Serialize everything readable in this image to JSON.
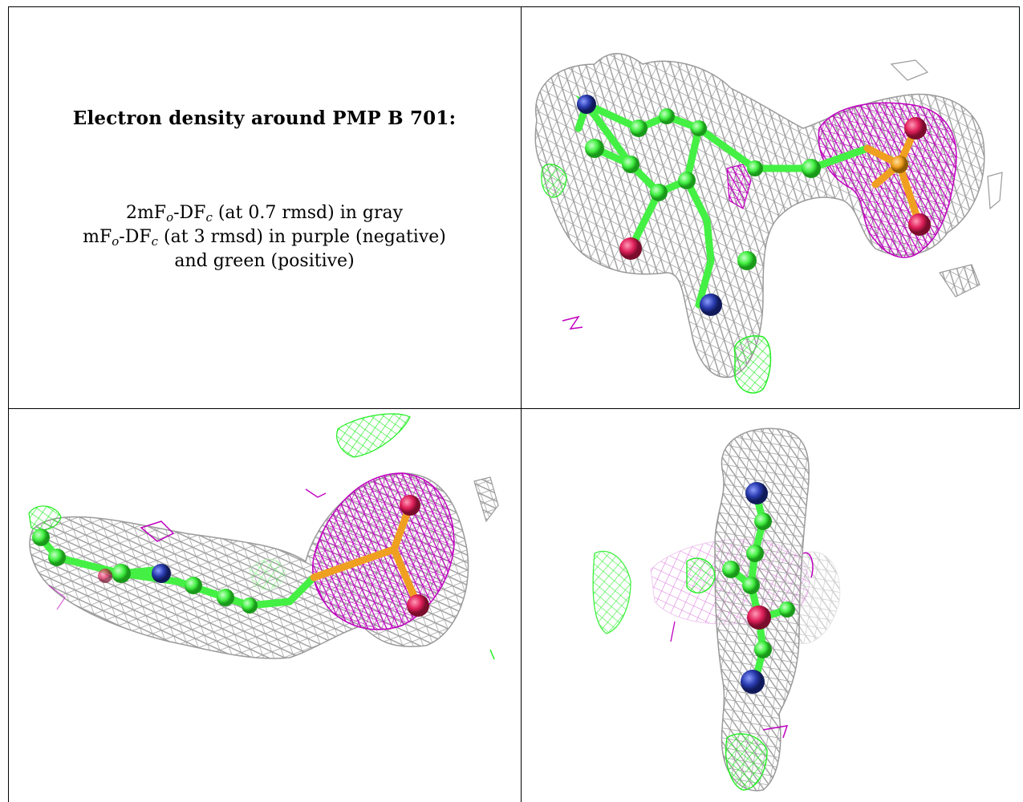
{
  "legend": {
    "title": "Electron density around PMP B 701:",
    "line1": {
      "pre": "2mF",
      "s1": "o",
      "mid": "-DF",
      "s2": "c",
      "post": " (at 0.7 rmsd) in gray"
    },
    "line2": {
      "pre": "mF",
      "s1": "o",
      "mid": "-DF",
      "s2": "c",
      "post": " (at 3 rmsd) in purple (negative)"
    },
    "line3": "and green (positive)"
  },
  "colors": {
    "mesh_2fofc": "#9a9a9a",
    "mesh_negative": "#c000c0",
    "mesh_positive": "#22ee22",
    "carbon": "#44f044",
    "nitrogen": "#2a3cb0",
    "oxygen": "#e0205a",
    "phosphorus": "#f0a020"
  },
  "icons": {
    "top_right": "electron-density-view-front",
    "bottom_left": "electron-density-view-side",
    "bottom_right": "electron-density-view-edge"
  }
}
